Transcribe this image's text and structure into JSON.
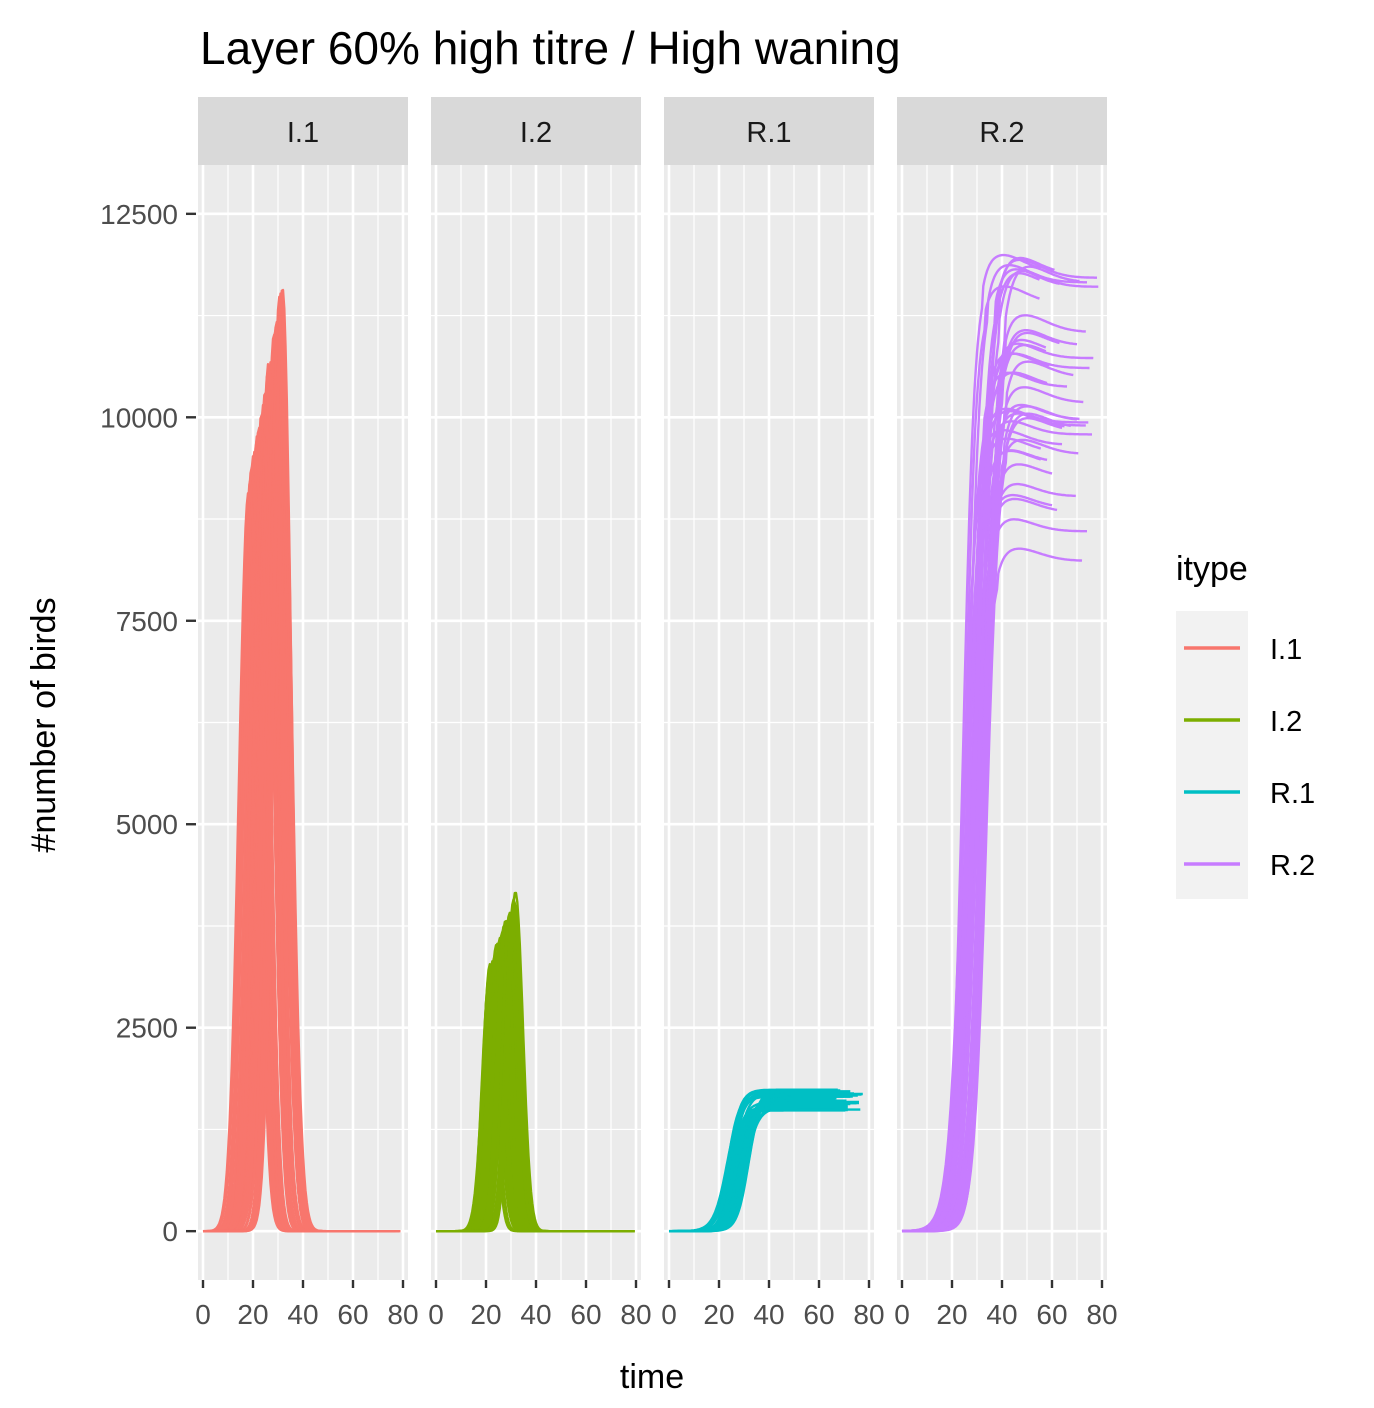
{
  "chart_data": {
    "type": "line",
    "title": "Layer 60% high titre / High waning",
    "xlabel": "time",
    "ylabel": "#number of birds",
    "xlim": [
      -2,
      82
    ],
    "ylim": [
      -600,
      13100
    ],
    "x_ticks": [
      0,
      20,
      40,
      60,
      80
    ],
    "x_tick_labels": [
      "0",
      "20",
      "40",
      "60",
      "80"
    ],
    "y_ticks": [
      0,
      2500,
      5000,
      7500,
      10000,
      12500
    ],
    "y_tick_labels": [
      "0",
      "2500",
      "5000",
      "7500",
      "10000",
      "12500"
    ],
    "grid": true,
    "facets": [
      {
        "name": "I.1",
        "label": "I.1",
        "kind": "pulse",
        "color": "#F8766D",
        "t_range": [
          18,
          32
        ],
        "peak_range": [
          9000,
          11600
        ],
        "width": 5.0,
        "end_range": [
          60,
          80
        ]
      },
      {
        "name": "I.2",
        "label": "I.2",
        "kind": "pulse",
        "color": "#7CAE00",
        "t_range": [
          21,
          32
        ],
        "peak_range": [
          3100,
          4100
        ],
        "width": 4.2,
        "end_range": [
          60,
          80
        ]
      },
      {
        "name": "R.1",
        "label": "R.1",
        "kind": "sigmoid",
        "color": "#00BFC4",
        "t_range": [
          23,
          32
        ],
        "plateau_range": [
          1480,
          1740
        ],
        "width": 2.4,
        "end_range": [
          66,
          78
        ]
      },
      {
        "name": "R.2",
        "label": "R.2",
        "kind": "sigmoid",
        "color": "#C77CFF",
        "t_range": [
          24,
          34
        ],
        "plateau_range": [
          8200,
          12000
        ],
        "width": 2.6,
        "end_range": [
          55,
          79
        ]
      }
    ],
    "runs_per_facet": 40,
    "legend": {
      "title": "itype",
      "position": "right",
      "entries": [
        {
          "label": "I.1",
          "color": "#F8766D"
        },
        {
          "label": "I.2",
          "color": "#7CAE00"
        },
        {
          "label": "R.1",
          "color": "#00BFC4"
        },
        {
          "label": "R.2",
          "color": "#C77CFF"
        }
      ]
    }
  }
}
